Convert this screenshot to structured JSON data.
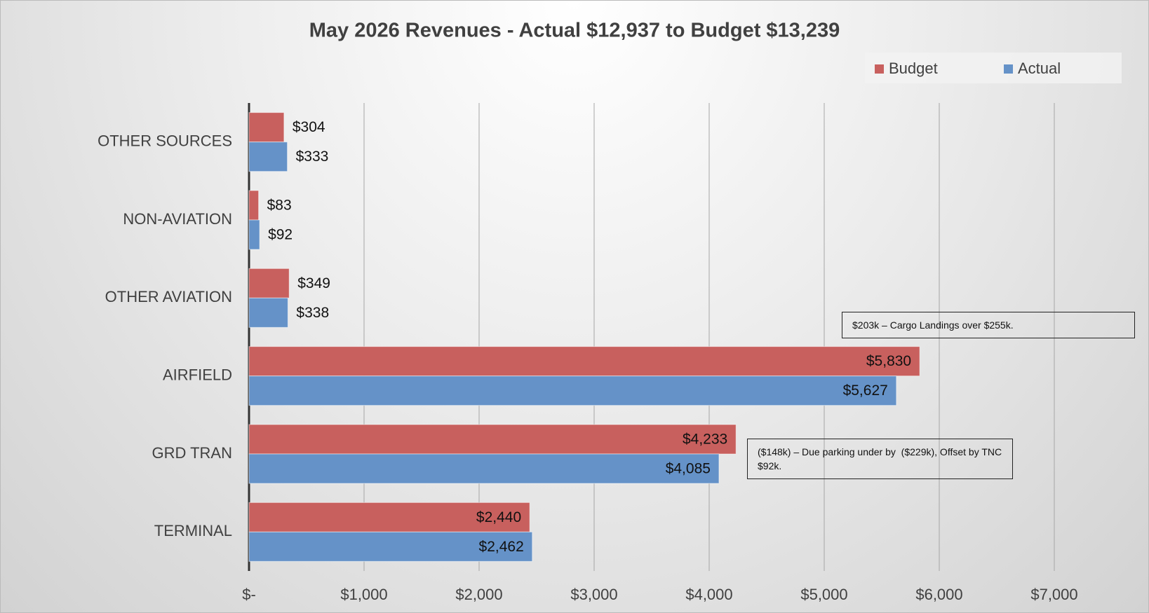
{
  "chart_data": {
    "type": "barh",
    "title": "May 2026 Revenues - Actual $12,937 to Budget $13,239",
    "categories": [
      "OTHER SOURCES",
      "NON-AVIATION",
      "OTHER AVIATION",
      "AIRFIELD",
      "GRD TRAN",
      "TERMINAL"
    ],
    "series": [
      {
        "name": "Budget",
        "color": "#c8605e",
        "values": [
          304,
          83,
          349,
          5830,
          4233,
          2440
        ],
        "value_labels": [
          "$304",
          "$83",
          "$349",
          "$5,830",
          "$4,233",
          "$2,440"
        ]
      },
      {
        "name": "Actual",
        "color": "#6592c8",
        "values": [
          333,
          92,
          338,
          5627,
          4085,
          2462
        ],
        "value_labels": [
          "$333",
          "$92",
          "$338",
          "$5,627",
          "$4,085",
          "$2,462"
        ]
      }
    ],
    "xlim": [
      0,
      7000
    ],
    "xticks": [
      {
        "value": 0,
        "label": "$-"
      },
      {
        "value": 1000,
        "label": "$1,000"
      },
      {
        "value": 2000,
        "label": "$2,000"
      },
      {
        "value": 3000,
        "label": "$3,000"
      },
      {
        "value": 4000,
        "label": "$4,000"
      },
      {
        "value": 5000,
        "label": "$5,000"
      },
      {
        "value": 6000,
        "label": "$6,000"
      },
      {
        "value": 7000,
        "label": "$7,000"
      }
    ],
    "grid": true,
    "legend": "top-right",
    "annotations": [
      {
        "text": "$203k – Cargo Landings over $255k."
      },
      {
        "text": "($148k) – Due parking under by  ($229k), Offset by TNC $92k."
      }
    ]
  }
}
